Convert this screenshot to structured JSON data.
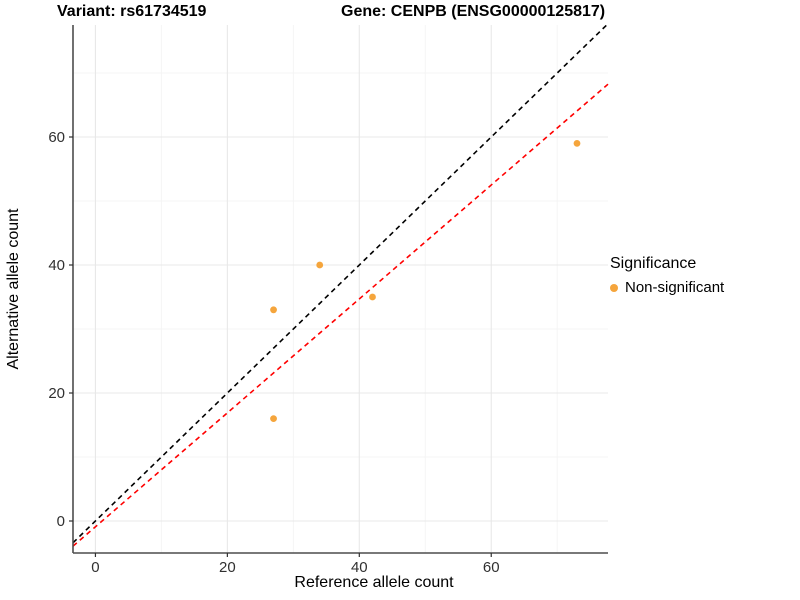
{
  "titles": {
    "variant": "Variant: rs61734519",
    "gene": "Gene: CENPB (ENSG00000125817)"
  },
  "legend": {
    "title": "Significance",
    "items": [
      {
        "label": "Non-significant",
        "color": "#F5A53C"
      }
    ]
  },
  "colors": {
    "point": "#F5A53C",
    "identity_line": "#000000",
    "fit_line": "#FF0000",
    "grid_major": "#E8E8E8",
    "grid_minor": "#F4F4F4",
    "axis_line": "#4d4d4d",
    "tick_text": "#303030"
  },
  "chart_data": {
    "type": "scatter",
    "title": "Variant: rs61734519  /  Gene: CENPB (ENSG00000125817)",
    "xlabel": "Reference allele count",
    "ylabel": "Alternative allele count",
    "series": [
      {
        "name": "Non-significant",
        "color": "#F5A53C",
        "points": [
          {
            "x": 34,
            "y": 40
          },
          {
            "x": 42,
            "y": 35
          },
          {
            "x": 27,
            "y": 33
          },
          {
            "x": 27,
            "y": 16
          },
          {
            "x": 73,
            "y": 59
          }
        ]
      }
    ],
    "lines": [
      {
        "name": "identity",
        "slope": 1,
        "intercept": 0,
        "color": "#000000",
        "style": "dashed"
      },
      {
        "name": "regression-fit",
        "slope": 0.89,
        "intercept": -0.9,
        "color": "#FF0000",
        "style": "dashed"
      }
    ],
    "xlim": [
      -3.4,
      77.7
    ],
    "ylim": [
      -5,
      77.5
    ],
    "x_ticks": [
      0,
      20,
      40,
      60
    ],
    "y_ticks": [
      0,
      20,
      40,
      60
    ],
    "x_minor": [
      10,
      30,
      50,
      70
    ],
    "y_minor": [
      10,
      30,
      50,
      70
    ],
    "grid": true,
    "legend_position": "right"
  }
}
